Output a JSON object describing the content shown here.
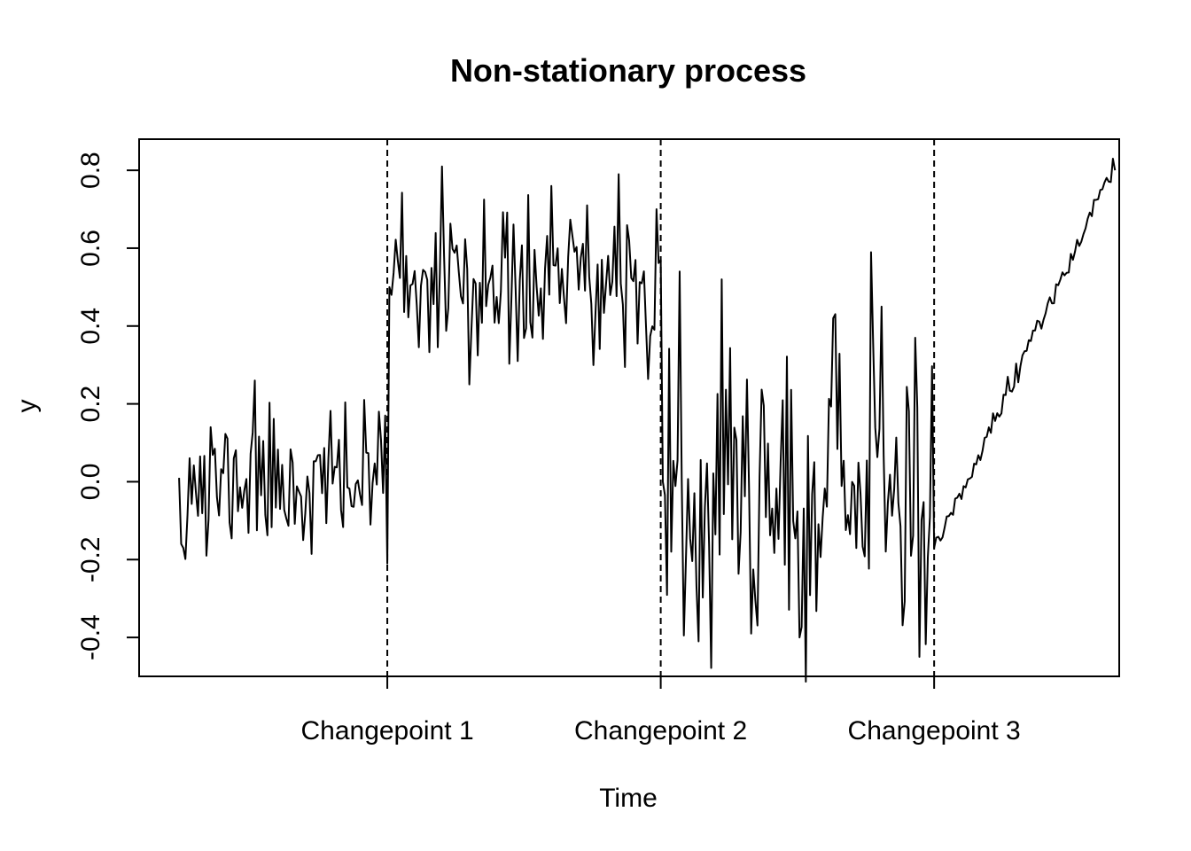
{
  "chart_data": {
    "type": "line",
    "title": "Non-stationary process",
    "xlabel": "Time",
    "ylabel": "y",
    "xlim": [
      -18,
      448
    ],
    "ylim": [
      -0.5,
      0.88
    ],
    "y_ticks": [
      -0.4,
      -0.2,
      0.0,
      0.2,
      0.4,
      0.6,
      0.8
    ],
    "y_tick_labels": [
      "-0.4",
      "-0.2",
      "0.0",
      "0.2",
      "0.4",
      "0.6",
      "0.8"
    ],
    "x_ticks": [
      100,
      230,
      360
    ],
    "x_tick_labels": [
      "Changepoint 1",
      "Changepoint 2",
      "Changepoint 3"
    ],
    "changepoints": [
      100,
      230,
      360
    ],
    "grid": false,
    "legend": "none",
    "line_color": "#000000",
    "series": [
      {
        "segments": [
          {
            "start": 1,
            "end": 100,
            "kind": "noise",
            "mean": 0.0,
            "sd": 0.09,
            "seed": 11,
            "fixed": {
              "1": 0.01,
              "2": -0.16,
              "3": -0.17,
              "14": -0.19,
              "37": 0.26,
              "60": -0.15,
              "96": 0.18,
              "99": 0.17,
              "100": -0.21
            }
          },
          {
            "start": 101,
            "end": 230,
            "kind": "noise",
            "mean": 0.5,
            "sd": 0.11,
            "seed": 23,
            "fixed": {
              "101": 0.5,
              "102": 0.48,
              "126": 0.81,
              "139": 0.25,
              "162": 0.31,
              "178": 0.76,
              "195": 0.71,
              "210": 0.79,
              "228": 0.7,
              "230": 0.57
            }
          },
          {
            "start": 231,
            "end": 360,
            "kind": "noise",
            "mean": 0.0,
            "sd": 0.19,
            "seed": 37,
            "fixed": {
              "231": 0.0,
              "239": 0.54,
              "248": -0.41,
              "259": 0.52,
              "273": -0.39,
              "296": -0.4,
              "312": 0.42,
              "335": 0.45,
              "351": 0.37,
              "353": -0.45,
              "360": -0.17
            }
          },
          {
            "start": 361,
            "end": 446,
            "kind": "trend",
            "from": -0.17,
            "to": 0.82,
            "sd": 0.015,
            "seed": 51,
            "fixed": {
              "446": 0.8,
              "445": 0.83
            }
          }
        ]
      }
    ]
  }
}
